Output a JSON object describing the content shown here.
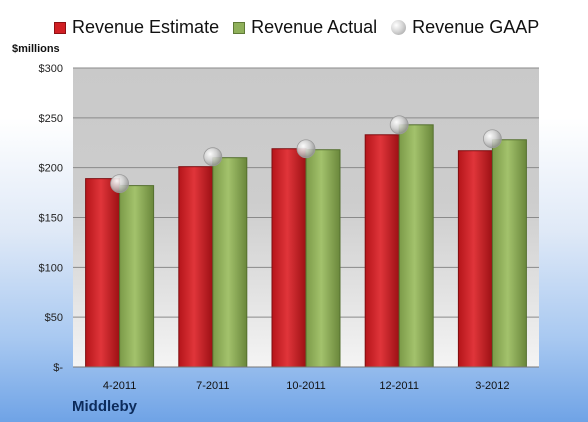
{
  "chart_data": {
    "type": "bar",
    "categories": [
      "4-2011",
      "7-2011",
      "10-2011",
      "12-2011",
      "3-2012"
    ],
    "series": [
      {
        "name": "Revenue Estimate",
        "kind": "bar",
        "color": "#d11f24",
        "values": [
          189,
          201,
          219,
          233,
          217
        ]
      },
      {
        "name": "Revenue Actual",
        "kind": "bar",
        "color": "#8fb05a",
        "values": [
          182,
          210,
          218,
          243,
          228
        ]
      },
      {
        "name": "Revenue GAAP",
        "kind": "marker",
        "color": "#c8c8c8",
        "values": [
          184,
          211,
          219,
          243,
          229
        ]
      }
    ],
    "ylabel": "$millions",
    "ylim": [
      0,
      300
    ],
    "yticks": [
      0,
      50,
      100,
      150,
      200,
      250,
      300
    ],
    "ytick_labels": [
      "$-",
      "$50",
      "$100",
      "$150",
      "$200",
      "$250",
      "$300"
    ],
    "grid": true,
    "legend_position": "top",
    "footer_label": "Middleby"
  }
}
